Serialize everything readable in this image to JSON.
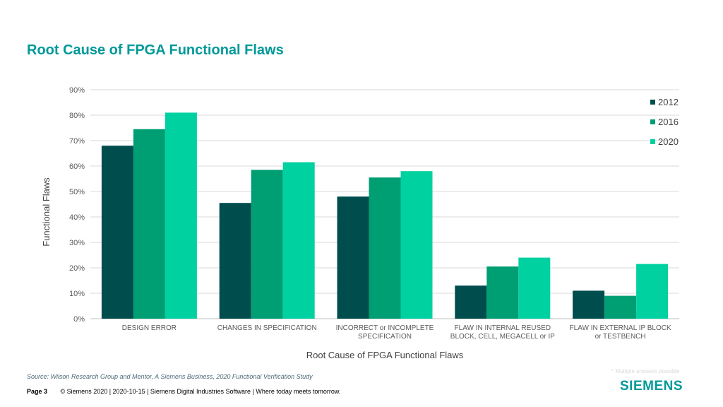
{
  "slide": {
    "title": "Root Cause of FPGA Functional Flaws"
  },
  "chart_data": {
    "type": "bar",
    "ylabel": "Functional Flaws",
    "xlabel": "Root Cause of FPGA Functional Flaws",
    "ylim": [
      0,
      90
    ],
    "yticks": [
      "0%",
      "10%",
      "20%",
      "30%",
      "40%",
      "50%",
      "60%",
      "70%",
      "80%",
      "90%"
    ],
    "grid": true,
    "legend_position": "top-right",
    "categories": [
      [
        "DESIGN ERROR"
      ],
      [
        "CHANGES IN SPECIFICATION"
      ],
      [
        "INCORRECT or INCOMPLETE",
        "SPECIFICATION"
      ],
      [
        "FLAW IN INTERNAL REUSED",
        "BLOCK, CELL, MEGACELL or IP"
      ],
      [
        "FLAW IN EXTERNAL IP BLOCK",
        "or TESTBENCH"
      ]
    ],
    "series": [
      {
        "name": "2012",
        "color": "#004d4d",
        "values": [
          68,
          45.5,
          48,
          13,
          11
        ]
      },
      {
        "name": "2016",
        "color": "#009e73",
        "values": [
          74.5,
          58.5,
          55.5,
          20.5,
          9
        ]
      },
      {
        "name": "2020",
        "color": "#00d1a0",
        "values": [
          81,
          61.5,
          58,
          24,
          21.5
        ]
      }
    ]
  },
  "footer": {
    "source": "Source:  Wilson Research Group and Mentor,  A Siemens Business, 2020 Functional Verification Study",
    "page_label": "Page 3",
    "copyright": "© Siemens 2020 | 2020-10-15 | Siemens Digital Industries Software | Where today meets tomorrow.",
    "footnote": "* Multiple answers possible",
    "logo": "SIEMENS"
  }
}
